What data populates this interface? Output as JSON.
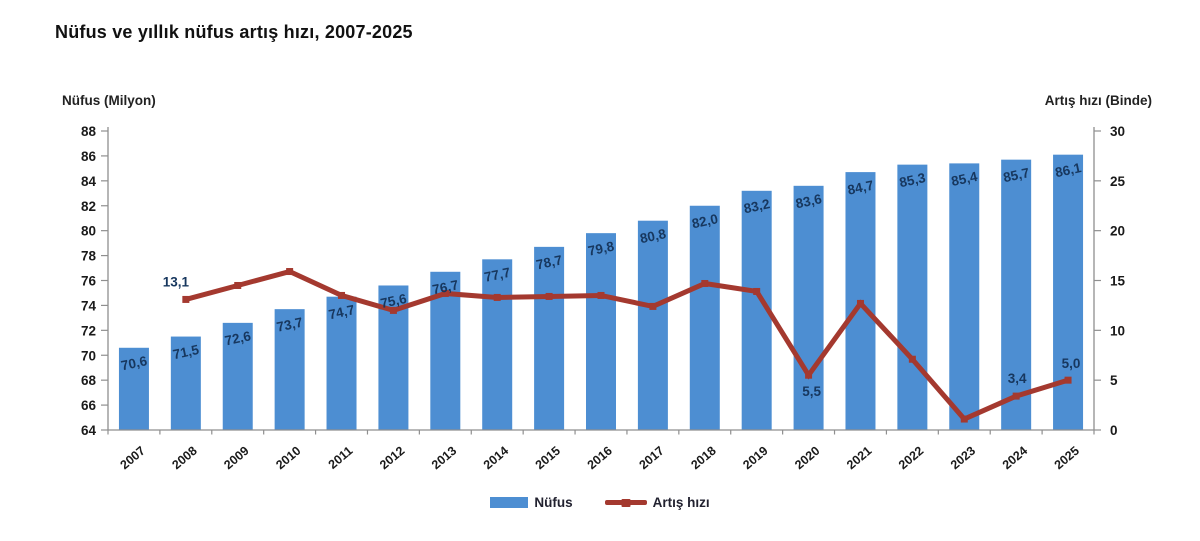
{
  "title": "Nüfus ve yıllık nüfus artış hızı, 2007-2025",
  "axes": {
    "left_label": "Nüfus (Milyon)",
    "right_label": "Artış hızı (Binde)"
  },
  "legend": {
    "bar_label": "Nüfus",
    "line_label": "Artış hızı"
  },
  "colors": {
    "bar": "#4d8ed2",
    "line": "#a4392f",
    "value_label": "#17375e",
    "axis_text": "#1a1a1a",
    "axis_line": "#8f8f8f",
    "title": "#111111",
    "background": "#ffffff"
  },
  "chart_data": {
    "type": "combo",
    "categories": [
      "2007",
      "2008",
      "2009",
      "2010",
      "2011",
      "2012",
      "2013",
      "2014",
      "2015",
      "2016",
      "2017",
      "2018",
      "2019",
      "2020",
      "2021",
      "2022",
      "2023",
      "2024",
      "2025"
    ],
    "series": [
      {
        "name": "Nüfus",
        "type": "bar",
        "axis": "left",
        "unit": "Milyon",
        "values": [
          70.6,
          71.5,
          72.6,
          73.7,
          74.7,
          75.6,
          76.7,
          77.7,
          78.7,
          79.8,
          80.8,
          82.0,
          83.2,
          83.6,
          84.7,
          85.3,
          85.4,
          85.7,
          86.1
        ],
        "value_labels": [
          "70,6",
          "71,5",
          "72,6",
          "73,7",
          "74,7",
          "75,6",
          "76,7",
          "77,7",
          "78,7",
          "79,8",
          "80,8",
          "82,0",
          "83,2",
          "83,6",
          "84,7",
          "85,3",
          "85,4",
          "85,7",
          "86,1"
        ]
      },
      {
        "name": "Artış hızı",
        "type": "line",
        "axis": "right",
        "unit": "Binde",
        "values": [
          null,
          13.1,
          14.5,
          15.9,
          13.5,
          12.0,
          13.7,
          13.3,
          13.4,
          13.5,
          12.4,
          14.7,
          13.9,
          5.5,
          12.7,
          7.1,
          1.1,
          3.4,
          5.0
        ],
        "point_labels": [
          {
            "category": "2008",
            "text": "13,1",
            "dx": -10,
            "dy": -13
          },
          {
            "category": "2020",
            "text": "5,5",
            "dx": 3,
            "dy": 21
          },
          {
            "category": "2024",
            "text": "3,4",
            "dx": 1,
            "dy": -13
          },
          {
            "category": "2025",
            "text": "5,0",
            "dx": 3,
            "dy": -12
          }
        ]
      }
    ],
    "left_axis": {
      "label": "Nüfus (Milyon)",
      "min": 64,
      "max": 88,
      "step": 2
    },
    "right_axis": {
      "label": "Artış hızı (Binde)",
      "min": 0,
      "max": 30,
      "step": 5
    },
    "grid": false,
    "legend_position": "bottom"
  }
}
